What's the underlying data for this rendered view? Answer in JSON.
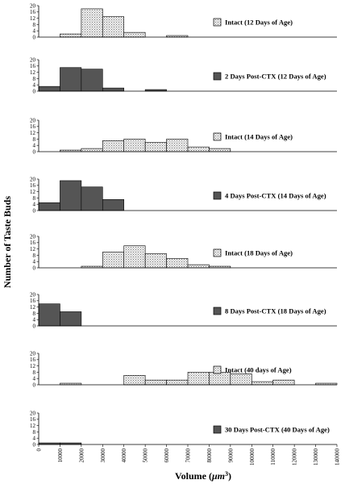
{
  "chart_data": {
    "type": "bar",
    "ylabel": "Number of Taste Buds",
    "xlabel": "Volume (",
    "xlabel_unit": "μm",
    "xlabel_exp": "3",
    "xlabel_close": ")",
    "xlim": [
      0,
      140000
    ],
    "ylim": [
      0,
      20
    ],
    "bin_width": 10000,
    "x_ticks": [
      "0",
      "10000",
      "20000",
      "30000",
      "40000",
      "50000",
      "60000",
      "70000",
      "80000",
      "90000",
      "100000",
      "110000",
      "120000",
      "130000",
      "140000"
    ],
    "y_ticks": [
      "0",
      "4",
      "8",
      "12",
      "16",
      "20"
    ],
    "grid": false,
    "legend_placement": "right",
    "colors": {
      "intact_fill": "#e6e6e6",
      "ctx_fill": "#555555",
      "stroke": "#000000"
    },
    "panels": [
      {
        "name": "Intact (12 Days of Age)",
        "style": "intact",
        "bins": [
          {
            "x": 10000,
            "y": 2
          },
          {
            "x": 20000,
            "y": 18
          },
          {
            "x": 30000,
            "y": 13
          },
          {
            "x": 40000,
            "y": 3
          },
          {
            "x": 60000,
            "y": 1
          }
        ]
      },
      {
        "name": "2 Days Post-CTX (12 Days of Age)",
        "style": "ctx",
        "bins": [
          {
            "x": 0,
            "y": 3
          },
          {
            "x": 10000,
            "y": 15
          },
          {
            "x": 20000,
            "y": 14
          },
          {
            "x": 30000,
            "y": 2
          },
          {
            "x": 50000,
            "y": 1
          }
        ]
      },
      {
        "name": "Intact (14 Days of Age)",
        "style": "intact",
        "bins": [
          {
            "x": 10000,
            "y": 1
          },
          {
            "x": 20000,
            "y": 2
          },
          {
            "x": 30000,
            "y": 7
          },
          {
            "x": 40000,
            "y": 8
          },
          {
            "x": 50000,
            "y": 6
          },
          {
            "x": 60000,
            "y": 8
          },
          {
            "x": 70000,
            "y": 3
          },
          {
            "x": 80000,
            "y": 2
          }
        ]
      },
      {
        "name": "4 Days Post-CTX (14 Days of Age)",
        "style": "ctx",
        "bins": [
          {
            "x": 0,
            "y": 5
          },
          {
            "x": 10000,
            "y": 19
          },
          {
            "x": 20000,
            "y": 15
          },
          {
            "x": 30000,
            "y": 7
          }
        ]
      },
      {
        "name": "Intact (18 Days of Age)",
        "style": "intact",
        "bins": [
          {
            "x": 20000,
            "y": 1
          },
          {
            "x": 30000,
            "y": 10
          },
          {
            "x": 40000,
            "y": 14
          },
          {
            "x": 50000,
            "y": 9
          },
          {
            "x": 60000,
            "y": 6
          },
          {
            "x": 70000,
            "y": 2
          },
          {
            "x": 80000,
            "y": 1
          }
        ]
      },
      {
        "name": "8 Days Post-CTX (18 Days of Age)",
        "style": "ctx",
        "bins": [
          {
            "x": 0,
            "y": 14
          },
          {
            "x": 10000,
            "y": 9
          }
        ]
      },
      {
        "name": "Intact (40 days of Age)",
        "style": "intact",
        "bins": [
          {
            "x": 10000,
            "y": 1
          },
          {
            "x": 40000,
            "y": 6
          },
          {
            "x": 50000,
            "y": 3
          },
          {
            "x": 60000,
            "y": 3
          },
          {
            "x": 70000,
            "y": 8
          },
          {
            "x": 80000,
            "y": 8
          },
          {
            "x": 90000,
            "y": 7
          },
          {
            "x": 100000,
            "y": 2
          },
          {
            "x": 110000,
            "y": 3
          },
          {
            "x": 130000,
            "y": 1
          }
        ]
      },
      {
        "name": "30 Days Post-CTX (40 Days of Age)",
        "style": "ctx",
        "bins": [
          {
            "x": 0,
            "y": 1
          },
          {
            "x": 10000,
            "y": 1
          }
        ]
      }
    ]
  }
}
